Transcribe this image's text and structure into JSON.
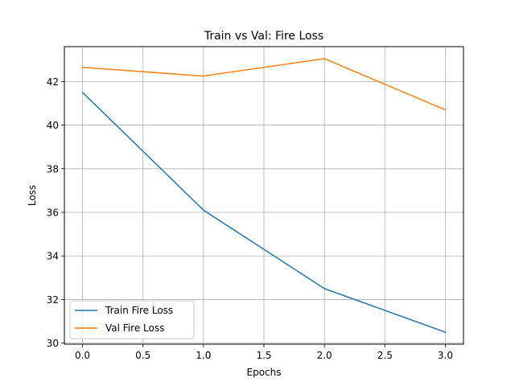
{
  "chart_data": {
    "type": "line",
    "title": "Train vs Val: Fire Loss",
    "xlabel": "Epochs",
    "ylabel": "Loss",
    "x": [
      0,
      1,
      2,
      3
    ],
    "xlim": [
      -0.15,
      3.15
    ],
    "ylim": [
      29.95,
      43.6
    ],
    "xticks": [
      0.0,
      0.5,
      1.0,
      1.5,
      2.0,
      2.5,
      3.0
    ],
    "xtick_labels": [
      "0.0",
      "0.5",
      "1.0",
      "1.5",
      "2.0",
      "2.5",
      "3.0"
    ],
    "yticks": [
      30,
      32,
      34,
      36,
      38,
      40,
      42
    ],
    "ytick_labels": [
      "30",
      "32",
      "34",
      "36",
      "38",
      "40",
      "42"
    ],
    "grid": true,
    "legend_position": "lower-left",
    "series": [
      {
        "name": "Train Fire Loss",
        "color": "#1f77b4",
        "values": [
          41.5,
          36.1,
          32.5,
          30.5
        ]
      },
      {
        "name": "Val Fire Loss",
        "color": "#ff7f0e",
        "values": [
          42.65,
          42.25,
          43.05,
          40.7
        ]
      }
    ]
  }
}
